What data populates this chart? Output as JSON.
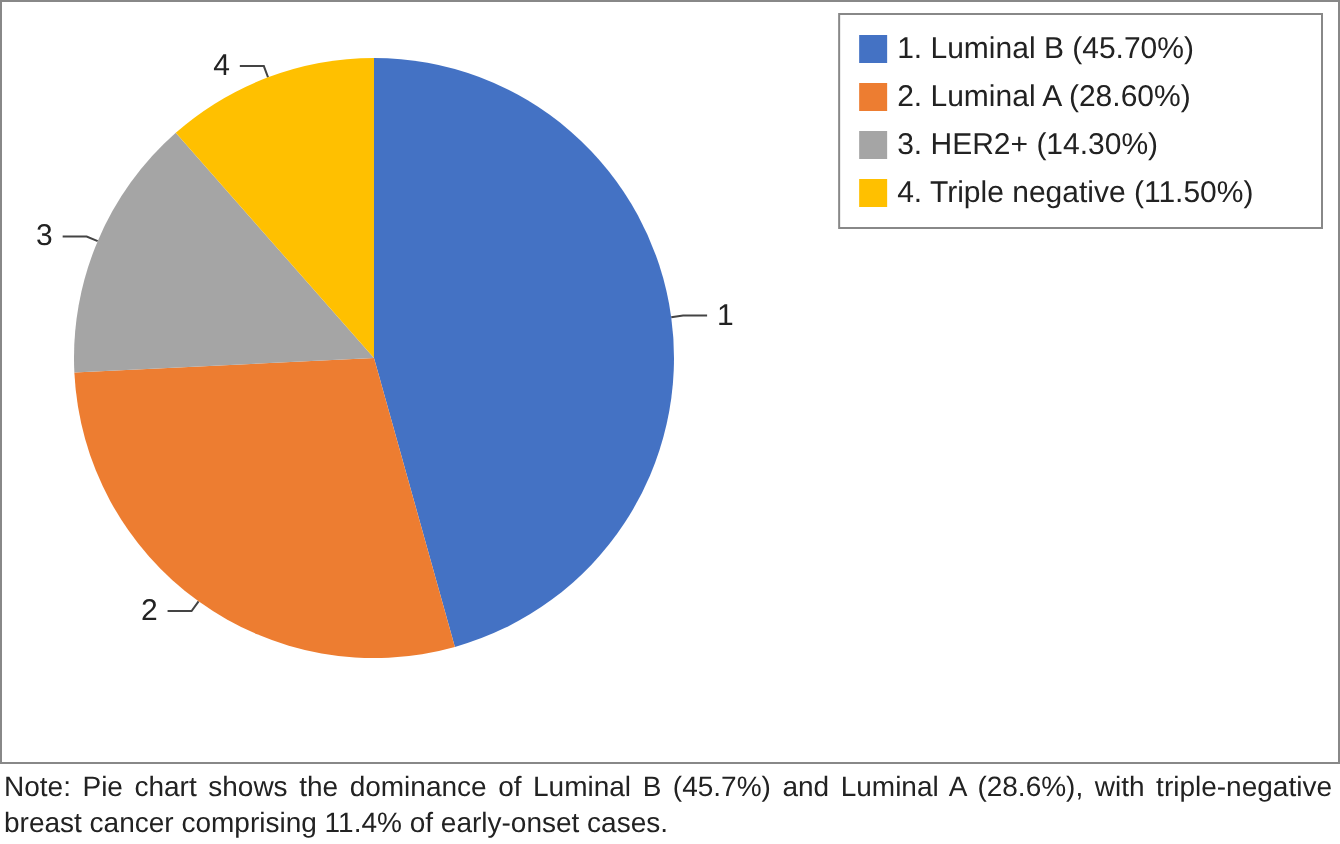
{
  "chart_data": {
    "type": "pie",
    "categories": [
      "1. Luminal B (45.70%)",
      "2. Luminal A (28.60%)",
      "3. HER2+ (14.30%)",
      "4. Triple negative (11.50%)"
    ],
    "values": [
      45.7,
      28.6,
      14.3,
      11.5
    ],
    "colors": [
      "#4472c4",
      "#ed7d31",
      "#a5a5a5",
      "#ffc000"
    ],
    "legend": "top right",
    "annotations": [
      "1",
      "2",
      "3",
      "4",
      "Note: Pie chart shows the dominance of Luminal B (45.7%) and Luminal A (28.6%), with triple-negative breast cancer comprising 11.4% of early-onset cases."
    ]
  }
}
